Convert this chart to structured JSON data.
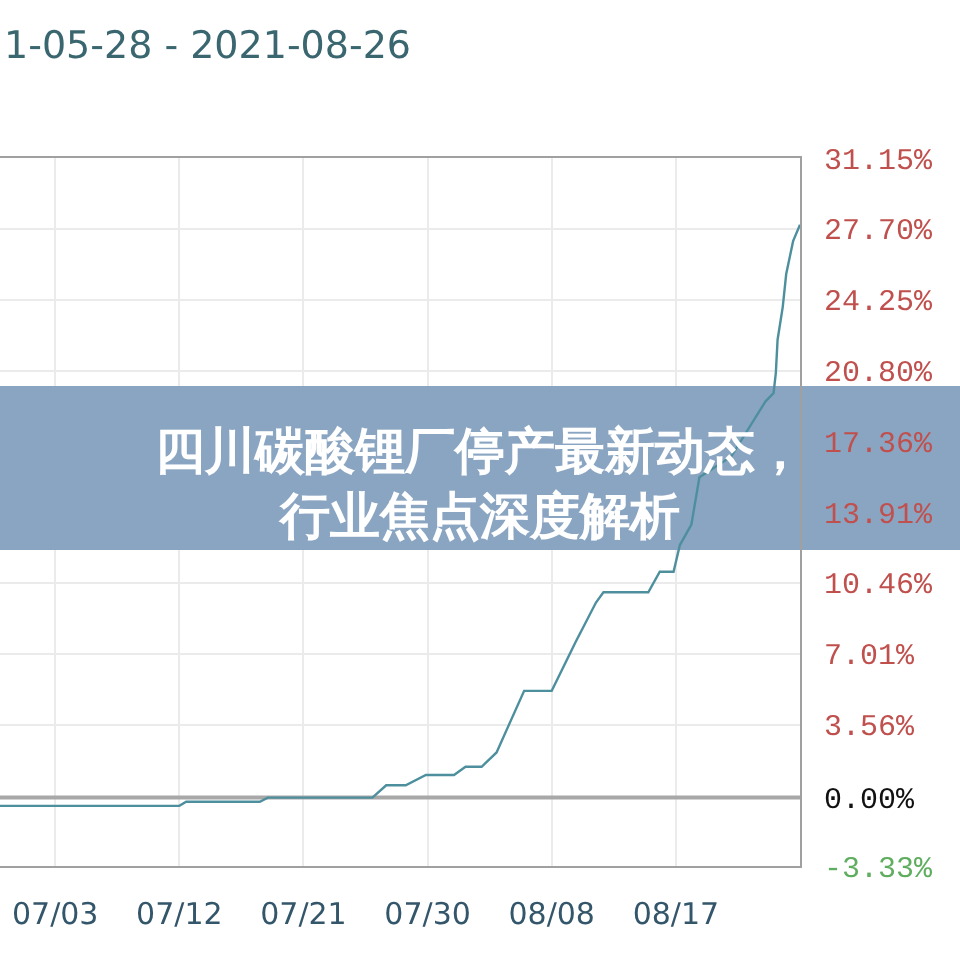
{
  "chart_data": {
    "type": "line",
    "title": "四川碳酸锂厂停产最新动态，行业焦点深度解析",
    "subtitle": "1-05-28 - 2021-08-26",
    "x": [
      "2021-06-29",
      "2021-07-12",
      "2021-07-12T12:00",
      "2021-07-17T20:00",
      "2021-07-18T10:00",
      "2021-07-26",
      "2021-07-27",
      "2021-07-28T10:00",
      "2021-07-29T21:00",
      "2021-07-31T22:00",
      "2021-08-01T18:00",
      "2021-08-02T22:00",
      "2021-08-04",
      "2021-08-06",
      "2021-08-08",
      "2021-08-09T18:00",
      "2021-08-11T05:00",
      "2021-08-11T18:00",
      "2021-08-15",
      "2021-08-15T20:00",
      "2021-08-16T20:00",
      "2021-08-17T07:00",
      "2021-08-18T03:00",
      "2021-08-18T17:00",
      "2021-08-21",
      "2021-08-23T12:00",
      "2021-08-24T02:00",
      "2021-08-24T06:00",
      "2021-08-24T09:00",
      "2021-08-24T18:00",
      "2021-08-25",
      "2021-08-25T12:00",
      "2021-08-26"
    ],
    "series": [
      {
        "color": "#4e8f9e",
        "values": [
          -0.4,
          -0.4,
          -0.2,
          -0.2,
          0.0,
          0.0,
          0.6,
          0.6,
          1.1,
          1.1,
          1.5,
          1.5,
          2.2,
          5.2,
          5.2,
          7.6,
          9.5,
          10.0,
          10.0,
          11.0,
          11.0,
          12.3,
          13.3,
          15.6,
          16.6,
          19.3,
          19.7,
          20.7,
          22.3,
          23.9,
          25.5,
          27.1,
          27.9
        ]
      }
    ],
    "xlim": [
      "2021-06-29",
      "2021-08-26"
    ],
    "xticks": [
      {
        "value": "2021-07-03",
        "label": "07/03"
      },
      {
        "value": "2021-07-12",
        "label": "07/12"
      },
      {
        "value": "2021-07-21",
        "label": "07/21"
      },
      {
        "value": "2021-07-30",
        "label": "07/30"
      },
      {
        "value": "2021-08-08",
        "label": "08/08"
      },
      {
        "value": "2021-08-17",
        "label": "08/17"
      }
    ],
    "ylim": [
      -3.33,
      31.15
    ],
    "yticks": [
      {
        "value": -3.33,
        "label": "-3.33%"
      },
      {
        "value": 0,
        "label": "0.00%"
      },
      {
        "value": 3.56,
        "label": "3.56%"
      },
      {
        "value": 7.01,
        "label": "7.01%"
      },
      {
        "value": 10.46,
        "label": "10.46%"
      },
      {
        "value": 13.91,
        "label": "13.91%"
      },
      {
        "value": 17.36,
        "label": "17.36%"
      },
      {
        "value": 20.8,
        "label": "20.80%"
      },
      {
        "value": 24.25,
        "label": "24.25%"
      },
      {
        "value": 27.7,
        "label": "27.70%"
      },
      {
        "value": 31.15,
        "label": "31.15%"
      }
    ],
    "grid": true,
    "ref_lines": [
      {
        "axis": "y",
        "value": 0,
        "color": "#a8a8a8"
      }
    ]
  }
}
